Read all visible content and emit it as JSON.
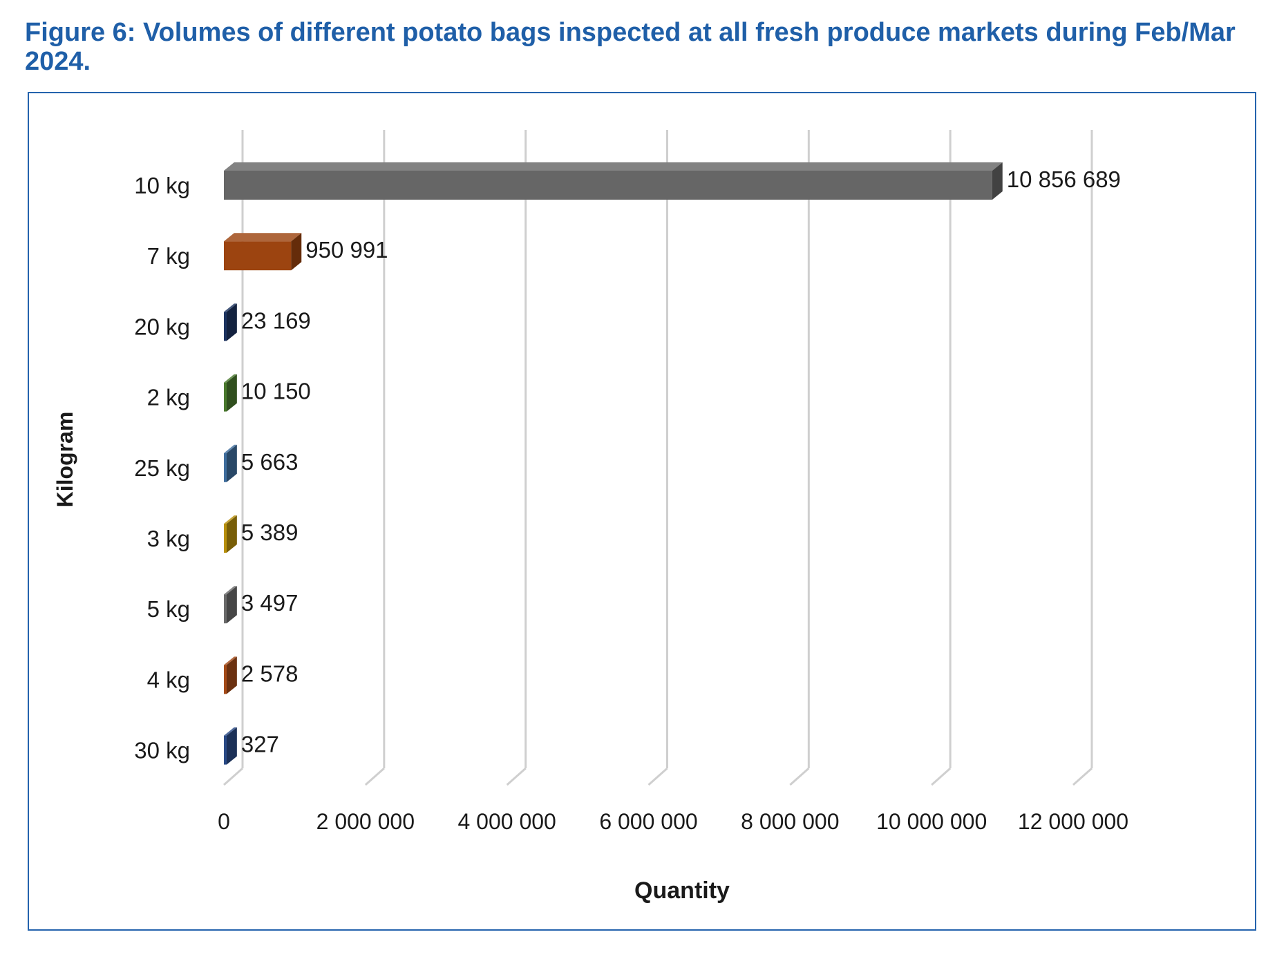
{
  "figure": {
    "caption": "Figure 6: Volumes of different potato bags inspected at all fresh produce markets during Feb/Mar 2024."
  },
  "chart_data": {
    "type": "bar",
    "orientation": "horizontal",
    "style": "3d",
    "title": "Figure 6: Volumes of different potato bags inspected at all fresh produce markets during Feb/Mar 2024.",
    "xlabel": "Quantity",
    "ylabel": "Kilogram",
    "xlim": [
      0,
      12000000
    ],
    "xticks": [
      0,
      2000000,
      4000000,
      6000000,
      8000000,
      10000000,
      12000000
    ],
    "xtick_labels": [
      "0",
      "2 000 000",
      "4 000 000",
      "6 000 000",
      "8 000 000",
      "10 000 000",
      "12 000 000"
    ],
    "gridlines": "vertical",
    "legend": "none",
    "categories": [
      "10 kg",
      "7 kg",
      "20 kg",
      "2 kg",
      "25 kg",
      "3 kg",
      "5 kg",
      "4 kg",
      "30 kg"
    ],
    "values": [
      10856689,
      950991,
      23169,
      10150,
      5663,
      5389,
      3497,
      2578,
      327
    ],
    "value_labels": [
      "10 856 689",
      "950 991",
      "23 169",
      "10 150",
      "5 663",
      "5 389",
      "3 497",
      "2 578",
      "327"
    ],
    "colors": [
      "#666666",
      "#9c4410",
      "#1d3461",
      "#4a7a2e",
      "#3f6e9e",
      "#b8900b",
      "#6b6b6b",
      "#a54b18",
      "#2a4a86"
    ]
  }
}
